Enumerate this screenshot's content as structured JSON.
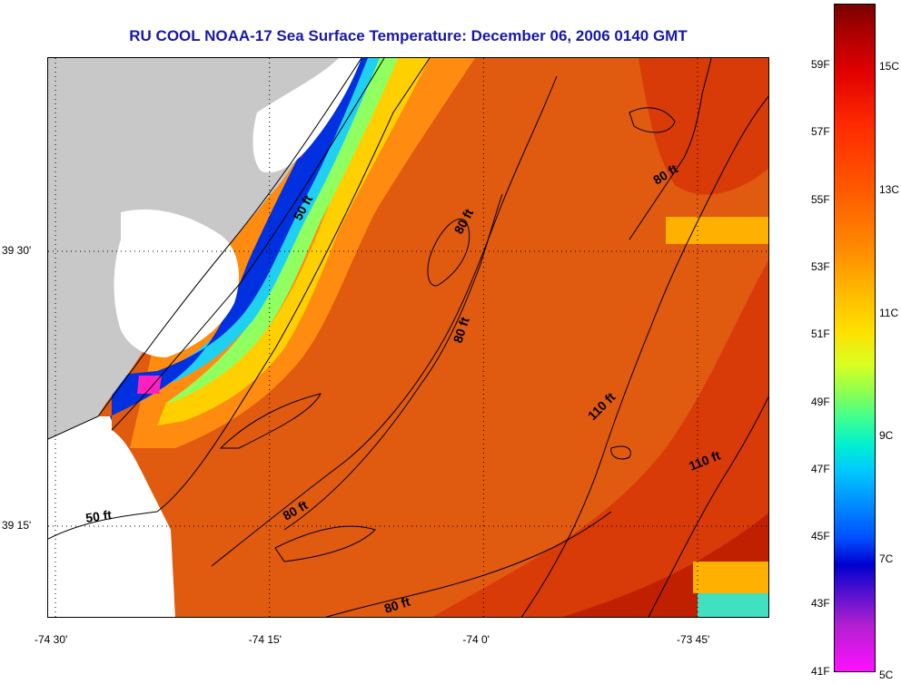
{
  "title": "RU COOL  NOAA-17  Sea Surface Temperature:  December 06, 2006 0140 GMT",
  "map": {
    "x_ticks": [
      {
        "label": "-74 30'",
        "lon": -74.5
      },
      {
        "label": "-74 15'",
        "lon": -74.25
      },
      {
        "label": "-74 0'",
        "lon": -74.0
      },
      {
        "label": "-73 45'",
        "lon": -73.75
      }
    ],
    "y_ticks": [
      {
        "label": "39 30'",
        "lat": 39.5
      },
      {
        "label": "39 15'",
        "lat": 39.25
      }
    ],
    "contour_labels": [
      {
        "text": "50 ft"
      },
      {
        "text": "80 ft"
      },
      {
        "text": "80 ft"
      },
      {
        "text": "80 ft"
      },
      {
        "text": "80 ft"
      },
      {
        "text": "110 ft"
      },
      {
        "text": "110 ft"
      },
      {
        "text": "80 ft"
      },
      {
        "text": "50 ft"
      }
    ],
    "colors": {
      "land": "#c8c8c8",
      "no_data": "#ffffff",
      "sea_main": "#e05a10",
      "sea_warm": "#c82000",
      "sea_cool": "#ff9a10",
      "coastal_yellow": "#ffd000",
      "coastal_green": "#90ff60",
      "coastal_cyan": "#20d0f0",
      "coastal_blue": "#0030e0",
      "coastal_violet": "#8020c0",
      "coastal_magenta": "#ff20c0"
    }
  },
  "colorbar": {
    "fahrenheit_labels": [
      "59F",
      "57F",
      "55F",
      "53F",
      "51F",
      "49F",
      "47F",
      "45F",
      "43F",
      "41F"
    ],
    "celsius_labels": [
      "15C",
      "13C",
      "11C",
      "9C",
      "7C",
      "5C"
    ]
  }
}
